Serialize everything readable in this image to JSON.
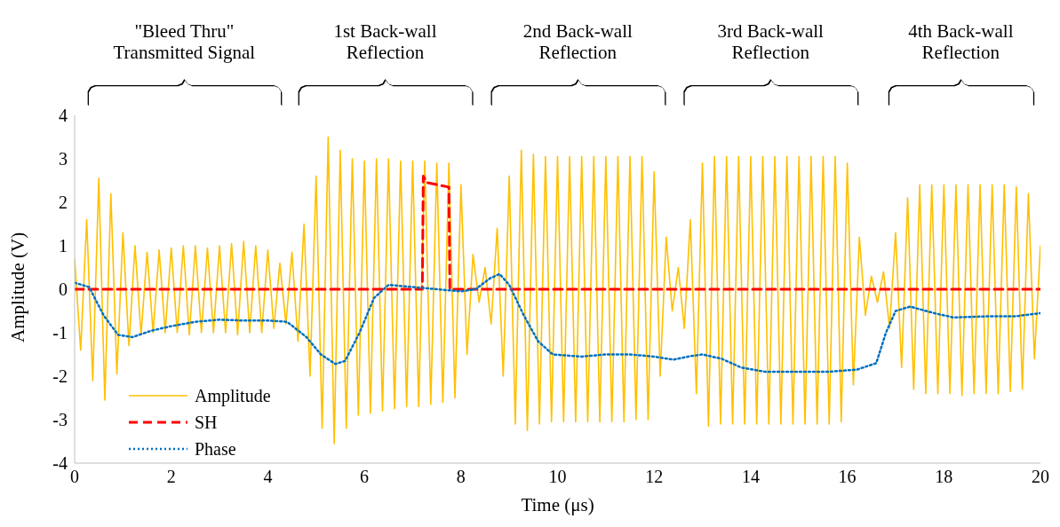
{
  "chart_data": {
    "type": "line",
    "xlabel": "Time (μs)",
    "ylabel": "Amplitude (V)",
    "xlim": [
      0,
      20
    ],
    "xticks": [
      0,
      2,
      4,
      6,
      8,
      10,
      12,
      14,
      16,
      18,
      20
    ],
    "ylim": [
      -4,
      4
    ],
    "yticks": [
      -4,
      -3,
      -2,
      -1,
      0,
      1,
      2,
      3,
      4
    ],
    "legend": "bottom left",
    "marker": "none",
    "x": [
      0,
      0.125,
      0.25,
      0.375,
      0.5,
      0.625,
      0.75,
      0.875,
      1,
      1.125,
      1.25,
      1.375,
      1.5,
      1.625,
      1.75,
      1.875,
      2,
      2.125,
      2.25,
      2.375,
      2.5,
      2.625,
      2.75,
      2.875,
      3,
      3.125,
      3.25,
      3.375,
      3.5,
      3.625,
      3.75,
      3.875,
      4,
      4.125,
      4.25,
      4.375,
      4.5,
      4.625,
      4.75,
      4.875,
      5,
      5.125,
      5.25,
      5.375,
      5.5,
      5.625,
      5.75,
      5.875,
      6,
      6.125,
      6.25,
      6.375,
      6.5,
      6.625,
      6.75,
      6.875,
      7,
      7.125,
      7.25,
      7.375,
      7.5,
      7.625,
      7.75,
      7.875,
      8,
      8.125,
      8.25,
      8.375,
      8.5,
      8.625,
      8.75,
      8.875,
      9,
      9.125,
      9.25,
      9.375,
      9.5,
      9.625,
      9.75,
      9.875,
      10,
      10.125,
      10.25,
      10.375,
      10.5,
      10.625,
      10.75,
      10.875,
      11,
      11.125,
      11.25,
      11.375,
      11.5,
      11.625,
      11.75,
      11.875,
      12,
      12.125,
      12.25,
      12.375,
      12.5,
      12.625,
      12.75,
      12.875,
      13,
      13.125,
      13.25,
      13.375,
      13.5,
      13.625,
      13.75,
      13.875,
      14,
      14.125,
      14.25,
      14.375,
      14.5,
      14.625,
      14.75,
      14.875,
      15,
      15.125,
      15.25,
      15.375,
      15.5,
      15.625,
      15.75,
      15.875,
      16,
      16.125,
      16.25,
      16.375,
      16.5,
      16.625,
      16.75,
      16.875,
      17,
      17.125,
      17.25,
      17.375,
      17.5,
      17.625,
      17.75,
      17.875,
      18,
      18.125,
      18.25,
      18.375,
      18.5,
      18.625,
      18.75,
      18.875,
      19,
      19.125,
      19.25,
      19.375,
      19.5,
      19.625,
      19.75,
      19.875,
      20
    ],
    "series": [
      {
        "name": "Amplitude",
        "color": "#ffc000",
        "line_style": "solid",
        "values": [
          0.7,
          -1.4,
          1.6,
          -2.1,
          2.55,
          -2.55,
          2.2,
          -1.95,
          1.3,
          -1.3,
          1.0,
          -1.05,
          0.85,
          -1.0,
          0.9,
          -1.0,
          0.95,
          -1.0,
          1.0,
          -1.05,
          1.0,
          -1.0,
          0.95,
          -1.0,
          1.0,
          -1.0,
          1.05,
          -1.05,
          1.1,
          -1.0,
          1.0,
          -1.0,
          0.9,
          -0.9,
          0.6,
          -0.8,
          0.85,
          -1.2,
          1.5,
          -2.0,
          2.6,
          -3.2,
          3.5,
          -3.55,
          3.2,
          -3.2,
          3.0,
          -2.9,
          2.95,
          -2.85,
          3.0,
          -2.8,
          3.0,
          -2.75,
          2.95,
          -2.7,
          2.95,
          -2.7,
          2.95,
          -2.65,
          2.9,
          -2.6,
          2.9,
          -2.5,
          2.4,
          -1.5,
          0.8,
          -0.3,
          0.5,
          -0.8,
          1.4,
          -2.0,
          2.6,
          -3.1,
          3.2,
          -3.25,
          3.1,
          -3.1,
          3.05,
          -3.05,
          3.05,
          -3.05,
          3.05,
          -3.05,
          3.05,
          -3.05,
          3.05,
          -3.05,
          3.05,
          -3.05,
          3.05,
          -3.05,
          3.05,
          -3.0,
          3.05,
          -3.0,
          2.7,
          -2.0,
          1.2,
          -0.5,
          0.5,
          -0.9,
          1.6,
          -2.4,
          2.9,
          -3.15,
          3.05,
          -3.1,
          3.05,
          -3.1,
          3.05,
          -3.1,
          3.05,
          -3.1,
          3.05,
          -3.1,
          3.05,
          -3.1,
          3.05,
          -3.1,
          3.05,
          -3.1,
          3.05,
          -3.1,
          3.05,
          -3.1,
          3.05,
          -3.05,
          2.9,
          -2.2,
          1.2,
          -0.6,
          0.3,
          -0.3,
          0.4,
          -0.9,
          1.3,
          -1.8,
          2.1,
          -2.3,
          2.4,
          -2.4,
          2.4,
          -2.4,
          2.4,
          -2.4,
          2.4,
          -2.45,
          2.4,
          -2.4,
          2.4,
          -2.4,
          2.4,
          -2.4,
          2.4,
          -2.35,
          2.35,
          -2.3,
          2.2,
          -1.6,
          1.0
        ]
      },
      {
        "name": "SH",
        "color": "#ff0000",
        "line_style": "dashed",
        "x": [
          0,
          7.2,
          7.22,
          7.3,
          7.75,
          7.77,
          20
        ],
        "values": [
          0,
          0,
          2.6,
          2.45,
          2.35,
          0,
          0
        ]
      },
      {
        "name": "Phase",
        "color": "#0070c0",
        "line_style": "dotted",
        "x": [
          0,
          0.3,
          0.6,
          0.9,
          1.2,
          1.6,
          2,
          2.5,
          3,
          3.5,
          4,
          4.4,
          4.8,
          5.1,
          5.4,
          5.6,
          5.9,
          6.2,
          6.5,
          7,
          7.5,
          8,
          8.3,
          8.6,
          8.8,
          9,
          9.3,
          9.6,
          9.9,
          10.5,
          11,
          11.5,
          12,
          12.4,
          12.7,
          13,
          13.4,
          13.8,
          14.3,
          15,
          15.6,
          16.2,
          16.6,
          16.8,
          17,
          17.3,
          17.8,
          18.2,
          19,
          19.5,
          20
        ],
        "values": [
          0.15,
          0.05,
          -0.6,
          -1.05,
          -1.1,
          -0.95,
          -0.85,
          -0.75,
          -0.7,
          -0.72,
          -0.72,
          -0.75,
          -1.1,
          -1.5,
          -1.72,
          -1.65,
          -1.0,
          -0.2,
          0.1,
          0.05,
          0,
          -0.05,
          0,
          0.25,
          0.35,
          0.1,
          -0.6,
          -1.2,
          -1.5,
          -1.55,
          -1.5,
          -1.5,
          -1.55,
          -1.62,
          -1.55,
          -1.5,
          -1.6,
          -1.8,
          -1.9,
          -1.9,
          -1.9,
          -1.85,
          -1.7,
          -1.0,
          -0.5,
          -0.4,
          -0.55,
          -0.65,
          -0.62,
          -0.62,
          -0.55
        ]
      }
    ],
    "annotations": [
      "\"Bleed Thru\"\nTransmitted Signal",
      "1st Back-wall\nReflection",
      "2nd Back-wall\nReflection",
      "3rd Back-wall\nReflection",
      "4th Back-wall\nReflection"
    ]
  }
}
